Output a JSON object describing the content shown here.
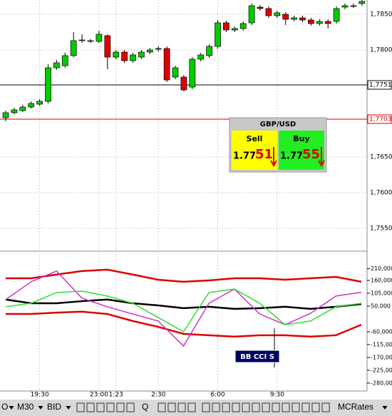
{
  "chart_data": [
    {
      "type": "candlestick",
      "categories": [
        null,
        null,
        null,
        null,
        "19:30",
        null,
        null,
        null,
        null,
        null,
        null,
        "23:00",
        null,
        "1:23",
        null,
        null,
        null,
        null,
        "2:30",
        null,
        null,
        null,
        null,
        null,
        null,
        "6:00",
        null,
        null,
        null,
        null,
        null,
        null,
        "9:30",
        null,
        null,
        null,
        null,
        null,
        null,
        null,
        null,
        null,
        null
      ],
      "open": [
        1.7705,
        1.7712,
        1.7715,
        1.772,
        1.7724,
        1.7728,
        1.7775,
        1.7778,
        1.7792,
        1.7813,
        1.7812,
        1.7812,
        1.782,
        1.779,
        1.7797,
        1.7785,
        1.779,
        1.7797,
        1.7801,
        1.7802,
        1.7762,
        1.7762,
        1.7748,
        1.7787,
        1.7792,
        1.7805,
        1.7838,
        1.7828,
        1.783,
        1.7838,
        1.786,
        1.7858,
        1.7848,
        1.785,
        1.7843,
        1.7845,
        1.7842,
        1.7837,
        1.784,
        1.784,
        1.786,
        1.7862,
        1.7865
      ],
      "high": [
        1.7715,
        1.7719,
        1.7723,
        1.7728,
        1.7731,
        1.778,
        1.7786,
        1.7796,
        1.7825,
        1.7822,
        1.7815,
        1.7827,
        1.7822,
        1.78,
        1.78,
        1.7796,
        1.78,
        1.7803,
        1.7805,
        1.7805,
        1.7778,
        1.7765,
        1.779,
        1.7796,
        1.7808,
        1.7842,
        1.7841,
        1.7833,
        1.784,
        1.7865,
        1.7863,
        1.7861,
        1.7855,
        1.7853,
        1.7848,
        1.7848,
        1.7845,
        1.7843,
        1.7843,
        1.7861,
        1.7865,
        1.7865,
        1.787
      ],
      "low": [
        1.77,
        1.771,
        1.7713,
        1.7718,
        1.7722,
        1.7725,
        1.7772,
        1.7775,
        1.779,
        1.781,
        1.781,
        1.781,
        1.7773,
        1.7787,
        1.7782,
        1.7782,
        1.7787,
        1.7794,
        1.7798,
        1.7755,
        1.7759,
        1.7742,
        1.7745,
        1.7784,
        1.7789,
        1.7802,
        1.7825,
        1.7825,
        1.7827,
        1.7835,
        1.7855,
        1.7845,
        1.7845,
        1.7835,
        1.784,
        1.7839,
        1.7834,
        1.7834,
        1.783,
        1.7837,
        1.7857,
        1.7859,
        1.7862
      ],
      "close": [
        1.7712,
        1.7716,
        1.772,
        1.7725,
        1.7728,
        1.7775,
        1.7782,
        1.7792,
        1.7813,
        1.7814,
        1.7813,
        1.7822,
        1.779,
        1.7797,
        1.7785,
        1.7793,
        1.7797,
        1.78,
        1.7802,
        1.7758,
        1.7775,
        1.7744,
        1.7787,
        1.7793,
        1.7805,
        1.7838,
        1.7828,
        1.783,
        1.7837,
        1.7862,
        1.7858,
        1.7848,
        1.7852,
        1.7843,
        1.7845,
        1.7842,
        1.7837,
        1.784,
        1.7837,
        1.7858,
        1.7862,
        1.7862,
        1.7868
      ],
      "up_color": "#00cc00",
      "down_color": "#e00000",
      "ylim": [
        1.752,
        1.787
      ],
      "yticks": [
        {
          "value": 1.785,
          "label": "1,7850"
        },
        {
          "value": 1.78,
          "label": "1,7800"
        },
        {
          "value": 1.765,
          "label": "1,7650"
        },
        {
          "value": 1.76,
          "label": "1,7600"
        },
        {
          "value": 1.755,
          "label": "1,7550"
        }
      ],
      "levels": [
        {
          "value": 1.7751,
          "label": "1,7751",
          "color": "#000000"
        },
        {
          "value": 1.7703,
          "label": "1,7703",
          "color": "#cc0000"
        }
      ],
      "grid": true
    },
    {
      "type": "line",
      "title": "BB CCI S",
      "series": [
        {
          "color": "#dd0000",
          "values": [
            169,
            169,
            185,
            200,
            206,
            185,
            163,
            154,
            160,
            169,
            169,
            163,
            169,
            175,
            154
          ]
        },
        {
          "color": "#dd0000",
          "values": [
            16,
            16,
            22,
            26,
            16,
            -14,
            -39,
            -69,
            -75,
            -81,
            -75,
            -75,
            -81,
            -75,
            -30
          ]
        },
        {
          "color": "#000000",
          "values": [
            78,
            62,
            62,
            71,
            78,
            62,
            53,
            41,
            47,
            38,
            41,
            47,
            38,
            47,
            59
          ]
        },
        {
          "color": "#cc33cc",
          "values": [
            78,
            154,
            200,
            84,
            47,
            16,
            -14,
            -121,
            62,
            123,
            16,
            -30,
            19,
            93,
            109
          ]
        },
        {
          "color": "#33dd33",
          "values": [
            47,
            62,
            108,
            114,
            93,
            62,
            1,
            -60,
            108,
            123,
            62,
            -30,
            -14,
            47,
            62
          ]
        }
      ],
      "ylim": [
        -314,
        276
      ],
      "yticks": [
        {
          "value": 210,
          "label": "210,000"
        },
        {
          "value": 160,
          "label": "160,000"
        },
        {
          "value": 105,
          "label": "105,000"
        },
        {
          "value": 50,
          "label": "50,000"
        },
        {
          "value": -60,
          "label": "-60,000"
        },
        {
          "value": -115,
          "label": "-115,000"
        },
        {
          "value": -170,
          "label": "-170,000"
        },
        {
          "value": -225,
          "label": "-225,000"
        },
        {
          "value": -280,
          "label": "-280,000"
        }
      ]
    }
  ],
  "quote": {
    "symbol": "GBP/USD",
    "sell_label": "Sell",
    "buy_label": "Buy",
    "sell_big": "1.77",
    "sell_pips": "51",
    "buy_big": "1.77",
    "buy_pips": "55"
  },
  "toolbar": {
    "items": [
      "O",
      "M30",
      "BID",
      "Q",
      "MCRates"
    ]
  }
}
